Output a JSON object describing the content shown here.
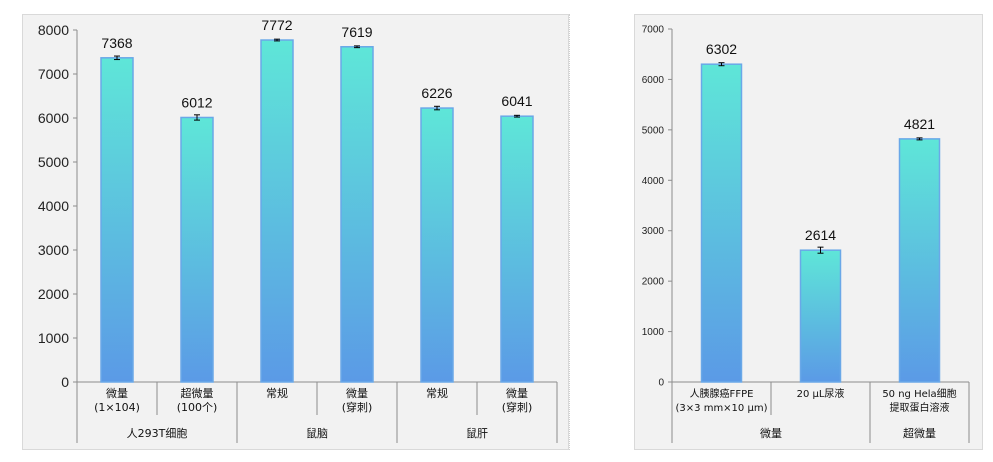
{
  "chart_data": [
    {
      "type": "bar",
      "ylim": [
        0,
        8000
      ],
      "yticks": [
        0,
        1000,
        2000,
        3000,
        4000,
        5000,
        6000,
        7000,
        8000
      ],
      "categories": [
        {
          "line1": "微量",
          "line2": "(1×104)"
        },
        {
          "line1": "超微量",
          "line2": "(100个)"
        },
        {
          "line1": "常规",
          "line2": ""
        },
        {
          "line1": "微量",
          "line2": "(穿刺)"
        },
        {
          "line1": "常规",
          "line2": ""
        },
        {
          "line1": "微量",
          "line2": "(穿刺)"
        }
      ],
      "values": [
        7368,
        6012,
        7772,
        7619,
        6226,
        6041
      ],
      "errors": [
        40,
        60,
        20,
        20,
        40,
        20
      ],
      "groups": [
        {
          "label": "人293T细胞",
          "span": [
            0,
            1
          ]
        },
        {
          "label": "鼠脑",
          "span": [
            2,
            3
          ]
        },
        {
          "label": "鼠肝",
          "span": [
            4,
            5
          ]
        }
      ],
      "bar_top_color": "#5ee6d8",
      "bar_bottom_color": "#5b9ae6",
      "bar_border_color": "#6aa8e8"
    },
    {
      "type": "bar",
      "ylim": [
        0,
        7000
      ],
      "yticks": [
        0,
        1000,
        2000,
        3000,
        4000,
        5000,
        6000,
        7000
      ],
      "categories": [
        {
          "line1": "人胰腺癌FFPE",
          "line2": "(3×3 mm×10 μm)"
        },
        {
          "line1": "20 μL尿液",
          "line2": ""
        },
        {
          "line1": "50 ng Hela细胞",
          "line2": "提取蛋白溶液"
        }
      ],
      "values": [
        6302,
        2614,
        4821
      ],
      "errors": [
        30,
        60,
        20
      ],
      "groups": [
        {
          "label": "微量",
          "span": [
            0,
            1
          ]
        },
        {
          "label": "超微量",
          "span": [
            2,
            2
          ]
        }
      ],
      "bar_top_color": "#5ee6d8",
      "bar_bottom_color": "#5b9ae6",
      "bar_border_color": "#6aa8e8"
    }
  ]
}
